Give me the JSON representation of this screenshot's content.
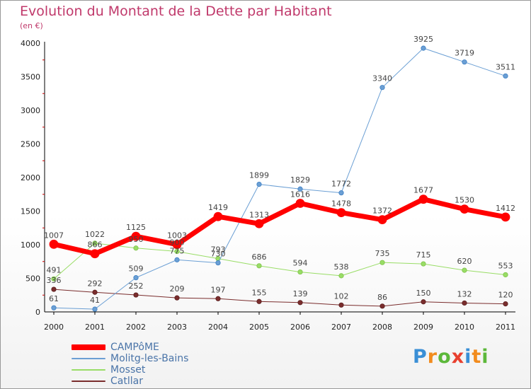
{
  "title": "Evolution du Montant de la Dette par Habitant",
  "subtitle": "(en €)",
  "chart_data": {
    "type": "line",
    "categories": [
      "2000",
      "2001",
      "2002",
      "2003",
      "2004",
      "2005",
      "2006",
      "2007",
      "2008",
      "2009",
      "2010",
      "2011"
    ],
    "yticks": [
      "0",
      "500",
      "1000",
      "1500",
      "2000",
      "2500",
      "3000",
      "3500",
      "4000"
    ],
    "ylim": [
      0,
      4000
    ],
    "legend_position": "bottom-left",
    "series": [
      {
        "name": "CAMPôME",
        "color": "#ff0000",
        "values": [
          1007,
          866,
          1125,
          1003,
          1419,
          1313,
          1616,
          1478,
          1372,
          1677,
          1530,
          1412
        ],
        "labels": [
          "1007",
          "866",
          "1125",
          "1003",
          "1419",
          "1313",
          "1616",
          "1478",
          "1372",
          "1677",
          "1530",
          "1412"
        ]
      },
      {
        "name": "Molitg-les-Bains",
        "color": "#6b9fd4",
        "values": [
          61,
          41,
          509,
          775,
          730,
          1899,
          1829,
          1772,
          3340,
          3925,
          3719,
          3511
        ],
        "labels": [
          "61",
          "41",
          "509",
          "775",
          "730",
          "1899",
          "1829",
          "1772",
          "3340",
          "3925",
          "3719",
          "3511"
        ]
      },
      {
        "name": "Mosset",
        "color": "#99dd66",
        "values": [
          491,
          1022,
          950,
          900,
          793,
          686,
          594,
          538,
          735,
          715,
          620,
          553
        ],
        "labels": [
          "491",
          "1022",
          "950",
          "900",
          "793",
          "686",
          "594",
          "538",
          "735",
          "715",
          "620",
          "553"
        ]
      },
      {
        "name": "Catllar",
        "color": "#7a2d2d",
        "values": [
          336,
          292,
          252,
          209,
          197,
          155,
          139,
          102,
          86,
          150,
          132,
          120
        ],
        "labels": [
          "336",
          "292",
          "252",
          "209",
          "197",
          "155",
          "139",
          "102",
          "86",
          "150",
          "132",
          "120"
        ]
      }
    ]
  },
  "logo": {
    "letters": [
      "P",
      "r",
      "o",
      "x",
      "i",
      "t",
      "i"
    ],
    "colors": [
      "#3a8fd6",
      "#f28c1e",
      "#5cb83a",
      "#e8402f",
      "#3a8fd6",
      "#f28c1e",
      "#5cb83a"
    ]
  }
}
